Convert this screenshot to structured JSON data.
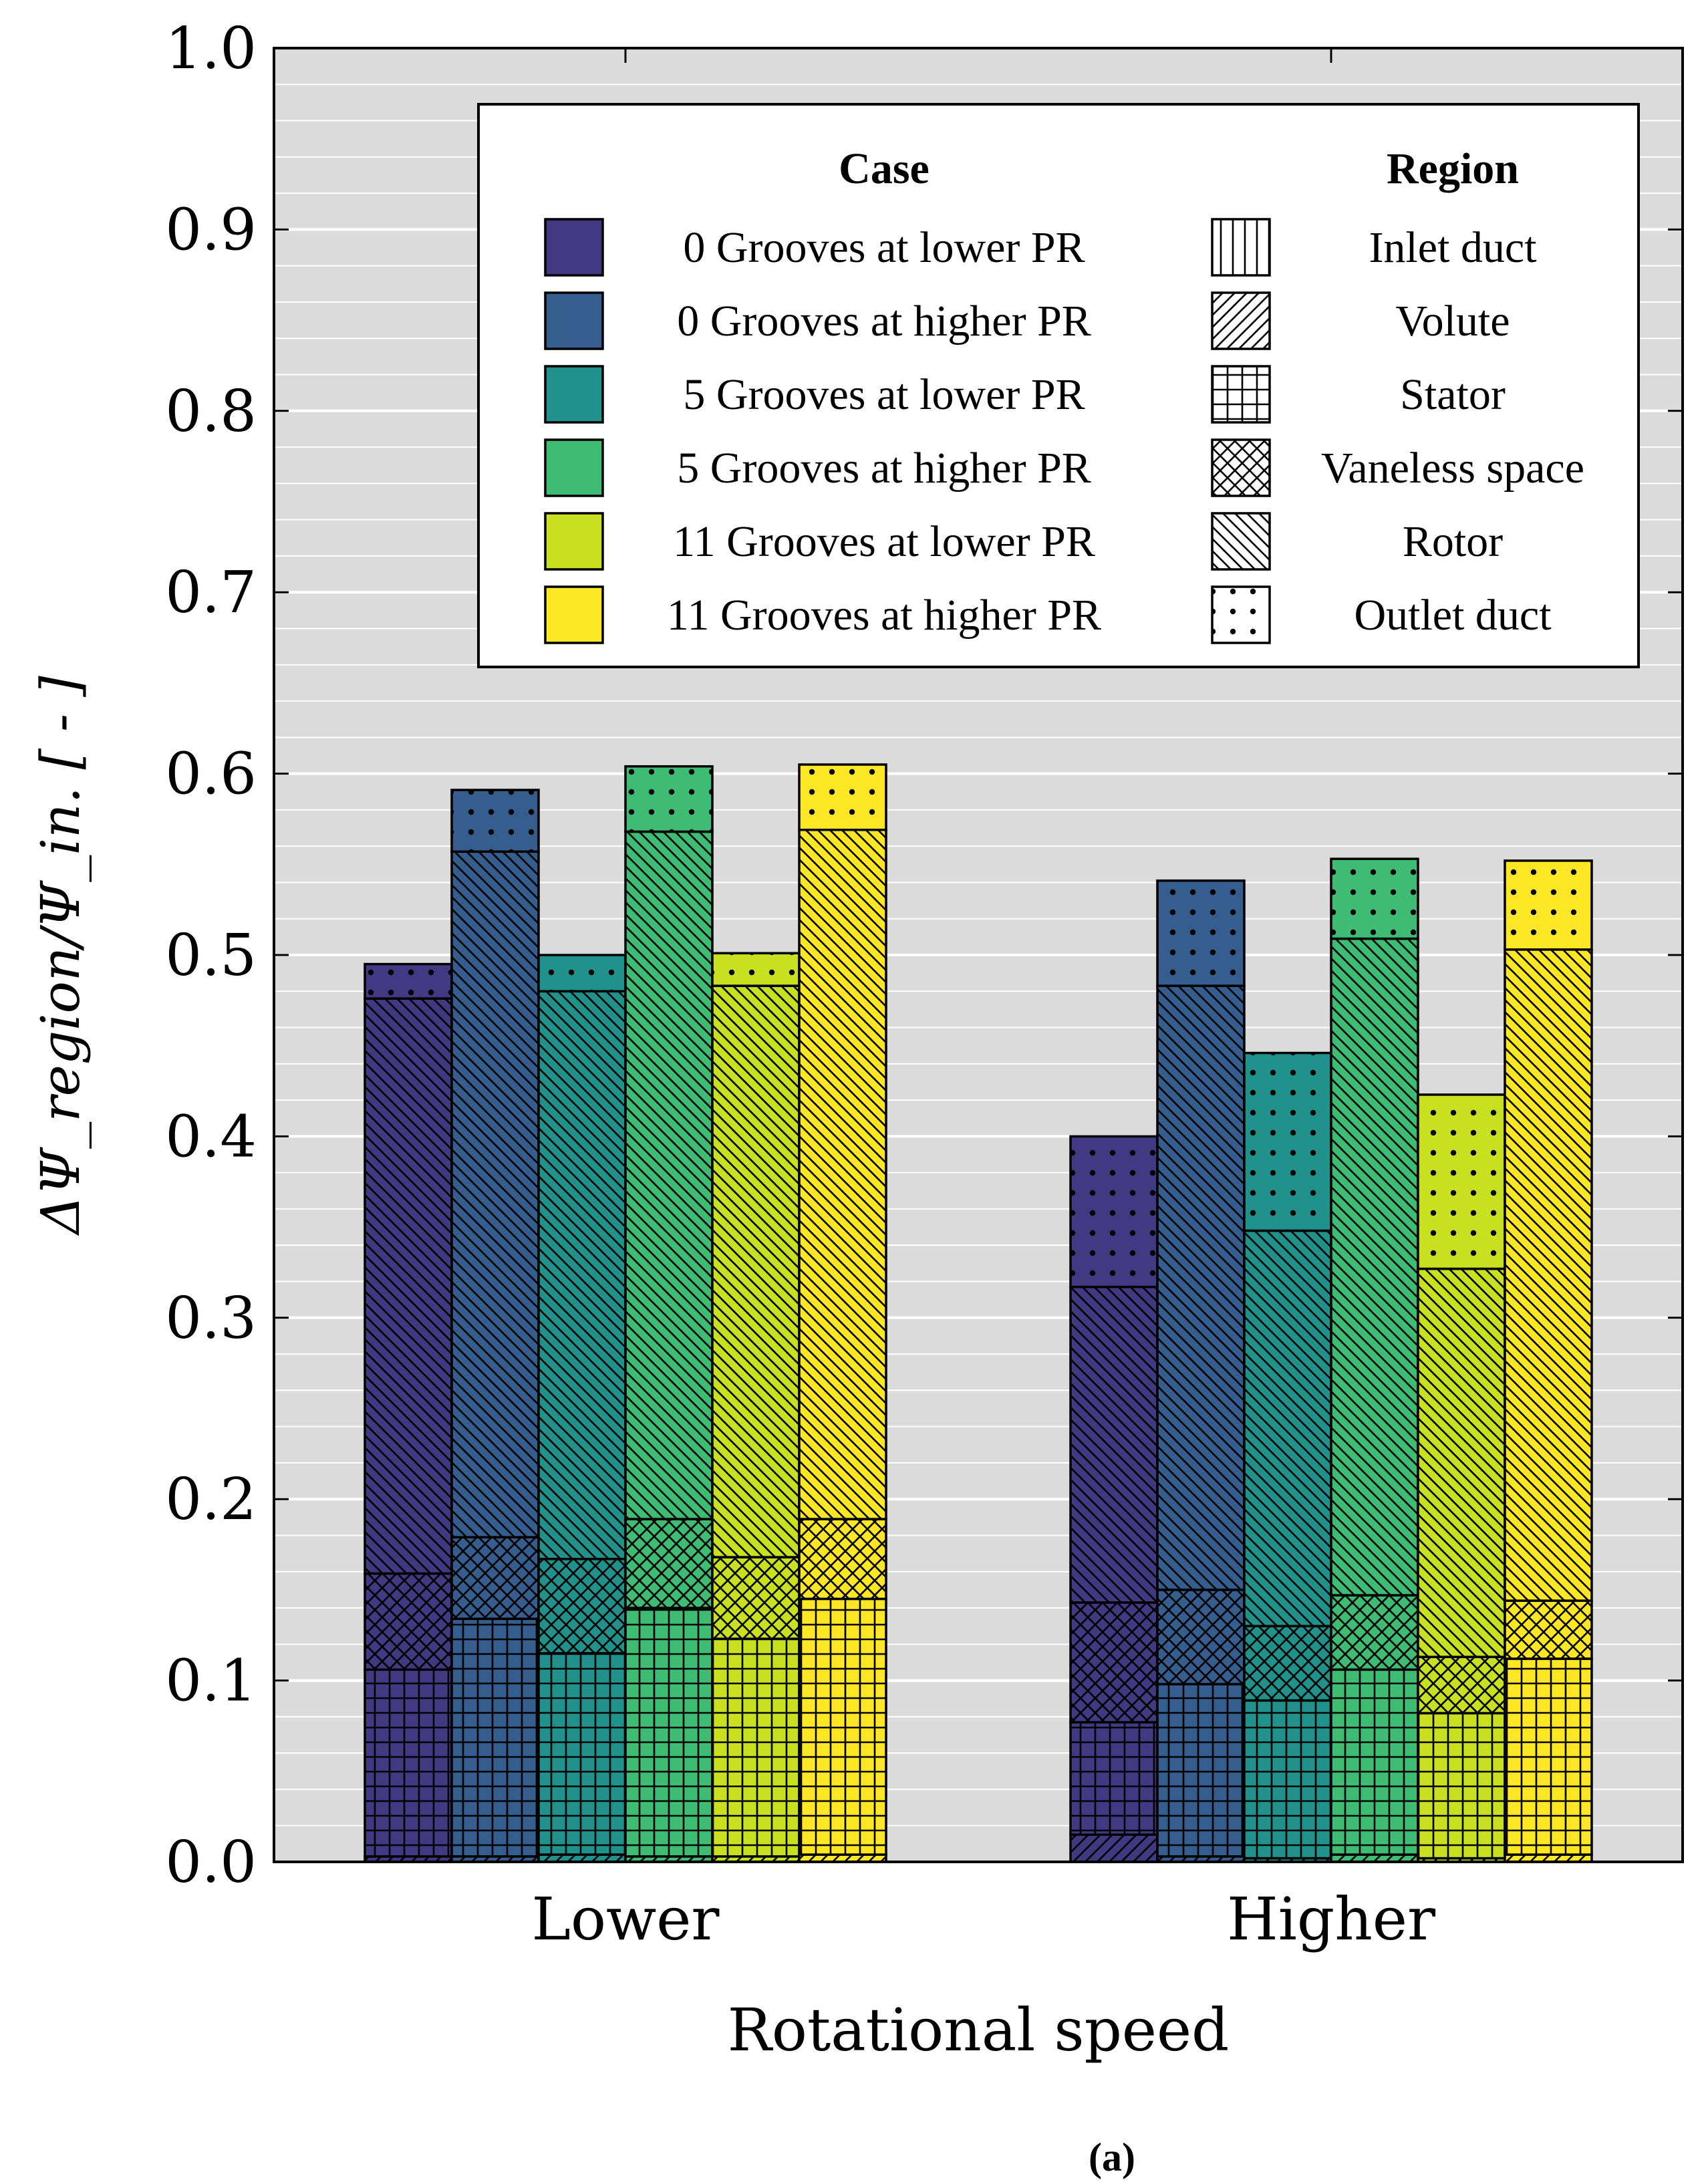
{
  "chart_data": {
    "type": "bar",
    "stacked": true,
    "categories": [
      "Lower",
      "Higher"
    ],
    "xlabel": "Rotational speed",
    "ylabel": "ΔΨ_region/Ψ_in. [ - ]",
    "ylim": [
      0,
      1.0
    ],
    "yticks": [
      "0.0",
      "0.1",
      "0.2",
      "0.3",
      "0.4",
      "0.5",
      "0.6",
      "0.7",
      "0.8",
      "0.9",
      "1.0"
    ],
    "grid": true,
    "caption": "(a)",
    "regions": [
      "Inlet duct",
      "Volute",
      "Stator",
      "Vaneless space",
      "Rotor",
      "Outlet duct"
    ],
    "region_patterns": [
      "vertical-lines",
      "diagonal-up",
      "grid",
      "crosshatch",
      "diagonal-down",
      "dots"
    ],
    "legend": {
      "case_title": "Case",
      "region_title": "Region",
      "position": "upper-right"
    },
    "series": [
      {
        "name": "0 Grooves at lower PR",
        "color": "#433982",
        "segments": {
          "Lower": [
            0.0,
            0.003,
            0.103,
            0.053,
            0.317,
            0.019
          ],
          "Higher": [
            0.0,
            0.015,
            0.062,
            0.066,
            0.174,
            0.083
          ]
        }
      },
      {
        "name": "0 Grooves at higher PR",
        "color": "#355d8d",
        "segments": {
          "Lower": [
            0.0,
            0.003,
            0.131,
            0.045,
            0.378,
            0.034
          ],
          "Higher": [
            0.0,
            0.003,
            0.095,
            0.052,
            0.333,
            0.058
          ]
        }
      },
      {
        "name": "5 Grooves at lower PR",
        "color": "#21918c",
        "segments": {
          "Lower": [
            0.0,
            0.004,
            0.111,
            0.052,
            0.313,
            0.02
          ],
          "Higher": [
            0.0,
            0.002,
            0.087,
            0.041,
            0.218,
            0.098
          ]
        }
      },
      {
        "name": "5 Grooves at higher PR",
        "color": "#3fbc73",
        "segments": {
          "Lower": [
            0.0,
            0.003,
            0.137,
            0.049,
            0.379,
            0.036
          ],
          "Higher": [
            0.0,
            0.004,
            0.102,
            0.041,
            0.362,
            0.044
          ]
        }
      },
      {
        "name": "11 Grooves at lower PR",
        "color": "#c8e020",
        "segments": {
          "Lower": [
            0.0,
            0.003,
            0.12,
            0.045,
            0.315,
            0.018
          ],
          "Higher": [
            0.0,
            0.002,
            0.08,
            0.031,
            0.214,
            0.096
          ]
        }
      },
      {
        "name": "11 Grooves at higher PR",
        "color": "#fde725",
        "segments": {
          "Lower": [
            0.0,
            0.004,
            0.141,
            0.044,
            0.38,
            0.036
          ],
          "Higher": [
            0.0,
            0.004,
            0.108,
            0.032,
            0.359,
            0.049
          ]
        }
      }
    ]
  }
}
